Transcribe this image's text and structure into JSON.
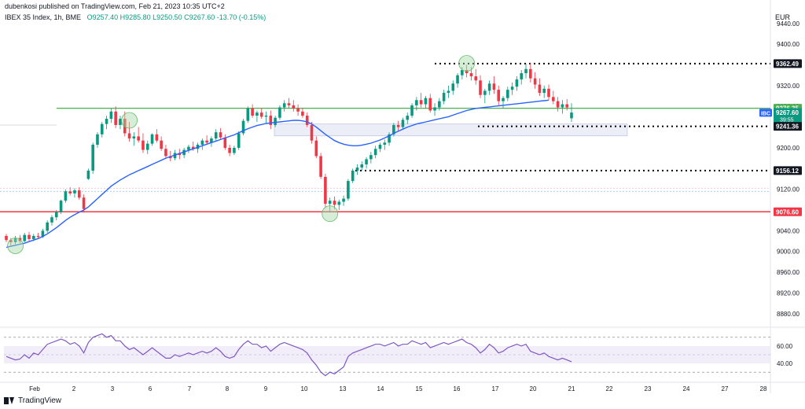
{
  "header": {
    "published_text": "dubenkosi published on TradingView.com, Feb 21, 2023 10:35 UTC+2"
  },
  "legend": {
    "symbol": "IBEX 35 Index, 1h, BME",
    "ohlc": "O9257.40  H9285.80  L9250.50  C9267.60  -13.70 (-0.15%)"
  },
  "currency": "EUR",
  "footer": {
    "brand": "TradingView"
  },
  "colors": {
    "up": "#089981",
    "down": "#f23645",
    "ma": "#2962ff",
    "rsi": "#7e57c2",
    "green_line": "#4caf50",
    "red_line": "#f23645",
    "zone_fill": "#e8eaf6",
    "circle": "#a5d6a7"
  },
  "chart_data": {
    "type": "candlestick",
    "y_axis": {
      "ticks": [
        8880,
        8920,
        8960,
        9000,
        9040,
        9080,
        9120,
        9160,
        9200,
        9240,
        9280,
        9320,
        9360,
        9400,
        9440
      ],
      "ylim": [
        8860,
        9470
      ]
    },
    "x_axis": {
      "labels": [
        "Feb",
        "2",
        "3",
        "6",
        "7",
        "8",
        "9",
        "10",
        "13",
        "14",
        "15",
        "16",
        "17",
        "20",
        "21",
        "22",
        "23",
        "24",
        "27",
        "28"
      ],
      "total_bars": 200
    },
    "price_tags": [
      {
        "value": "9362.49",
        "style": "black",
        "level": 9362.49
      },
      {
        "value": "9276.35",
        "style": "green",
        "level": 9276.35
      },
      {
        "value": "9267.60",
        "style": "teal",
        "level": 9267.6,
        "extra": "39:55",
        "symbol": "IBC"
      },
      {
        "value": "9241.36",
        "style": "black",
        "level": 9241.36
      },
      {
        "value": "9156.12",
        "style": "black",
        "level": 9156.12
      },
      {
        "value": "9076.60",
        "style": "red",
        "level": 9076.6
      }
    ],
    "levels": {
      "green_horizontal": 9276.35,
      "red_horizontal": 9076.6,
      "dotted_resistance": 9362.49,
      "dotted_support_1": 9241.36,
      "dotted_support_2": 9156.12,
      "zone_top": 9246,
      "zone_bottom": 9223,
      "faint_upper": 9122,
      "faint_lower": 9116
    },
    "candles": [
      [
        9030,
        9034,
        9018,
        9022
      ],
      [
        9022,
        9026,
        9012,
        9018
      ],
      [
        9018,
        9030,
        9014,
        9026
      ],
      [
        9026,
        9032,
        9016,
        9020
      ],
      [
        9020,
        9036,
        9018,
        9032
      ],
      [
        9032,
        9038,
        9020,
        9024
      ],
      [
        9024,
        9034,
        9020,
        9030
      ],
      [
        9030,
        9036,
        9024,
        9028
      ],
      [
        9028,
        9044,
        9026,
        9040
      ],
      [
        9040,
        9060,
        9036,
        9056
      ],
      [
        9056,
        9070,
        9050,
        9066
      ],
      [
        9066,
        9080,
        9060,
        9076
      ],
      [
        9076,
        9100,
        9072,
        9098
      ],
      [
        9098,
        9120,
        9094,
        9116
      ],
      [
        9116,
        9124,
        9108,
        9112
      ],
      [
        9112,
        9122,
        9104,
        9118
      ],
      [
        9118,
        9124,
        9100,
        9104
      ],
      [
        9104,
        9110,
        9078,
        9082
      ],
      [
        9140,
        9160,
        9138,
        9156
      ],
      [
        9156,
        9210,
        9150,
        9206
      ],
      [
        9206,
        9230,
        9200,
        9226
      ],
      [
        9226,
        9250,
        9220,
        9246
      ],
      [
        9246,
        9262,
        9236,
        9256
      ],
      [
        9256,
        9276,
        9248,
        9270
      ],
      [
        9270,
        9280,
        9238,
        9244
      ],
      [
        9244,
        9262,
        9236,
        9256
      ],
      [
        9256,
        9270,
        9222,
        9228
      ],
      [
        9228,
        9250,
        9212,
        9218
      ],
      [
        9218,
        9230,
        9204,
        9222
      ],
      [
        9222,
        9240,
        9210,
        9214
      ],
      [
        9214,
        9228,
        9190,
        9196
      ],
      [
        9196,
        9214,
        9188,
        9208
      ],
      [
        9208,
        9228,
        9204,
        9226
      ],
      [
        9226,
        9236,
        9210,
        9214
      ],
      [
        9214,
        9222,
        9194,
        9198
      ],
      [
        9198,
        9206,
        9180,
        9184
      ],
      [
        9184,
        9194,
        9174,
        9180
      ],
      [
        9180,
        9196,
        9176,
        9190
      ],
      [
        9190,
        9198,
        9178,
        9186
      ],
      [
        9186,
        9200,
        9180,
        9196
      ],
      [
        9196,
        9206,
        9190,
        9202
      ],
      [
        9202,
        9212,
        9194,
        9198
      ],
      [
        9198,
        9210,
        9190,
        9206
      ],
      [
        9206,
        9218,
        9196,
        9214
      ],
      [
        9214,
        9224,
        9206,
        9210
      ],
      [
        9210,
        9222,
        9202,
        9218
      ],
      [
        9218,
        9236,
        9212,
        9230
      ],
      [
        9230,
        9238,
        9216,
        9220
      ],
      [
        9220,
        9226,
        9196,
        9200
      ],
      [
        9200,
        9206,
        9184,
        9190
      ],
      [
        9190,
        9204,
        9186,
        9200
      ],
      [
        9200,
        9232,
        9196,
        9228
      ],
      [
        9228,
        9256,
        9224,
        9252
      ],
      [
        9252,
        9280,
        9248,
        9276
      ],
      [
        9276,
        9284,
        9258,
        9262
      ],
      [
        9262,
        9272,
        9250,
        9268
      ],
      [
        9268,
        9276,
        9256,
        9260
      ],
      [
        9260,
        9270,
        9248,
        9262
      ],
      [
        9262,
        9272,
        9236,
        9244
      ],
      [
        9244,
        9262,
        9240,
        9258
      ],
      [
        9258,
        9282,
        9254,
        9278
      ],
      [
        9278,
        9292,
        9270,
        9286
      ],
      [
        9286,
        9296,
        9276,
        9282
      ],
      [
        9282,
        9292,
        9270,
        9276
      ],
      [
        9276,
        9284,
        9262,
        9270
      ],
      [
        9270,
        9276,
        9258,
        9262
      ],
      [
        9262,
        9268,
        9240,
        9244
      ],
      [
        9244,
        9250,
        9208,
        9214
      ],
      [
        9214,
        9222,
        9180,
        9184
      ],
      [
        9184,
        9190,
        9140,
        9144
      ],
      [
        9144,
        9150,
        9084,
        9092
      ],
      [
        9092,
        9104,
        9076,
        9098
      ],
      [
        9098,
        9106,
        9082,
        9090
      ],
      [
        9090,
        9100,
        9080,
        9096
      ],
      [
        9096,
        9108,
        9088,
        9102
      ],
      [
        9102,
        9140,
        9098,
        9136
      ],
      [
        9136,
        9160,
        9132,
        9156
      ],
      [
        9156,
        9168,
        9148,
        9162
      ],
      [
        9162,
        9174,
        9156,
        9168
      ],
      [
        9168,
        9182,
        9160,
        9178
      ],
      [
        9178,
        9192,
        9170,
        9186
      ],
      [
        9186,
        9204,
        9180,
        9198
      ],
      [
        9198,
        9210,
        9192,
        9206
      ],
      [
        9206,
        9216,
        9196,
        9210
      ],
      [
        9210,
        9230,
        9204,
        9226
      ],
      [
        9226,
        9248,
        9222,
        9244
      ],
      [
        9244,
        9252,
        9232,
        9240
      ],
      [
        9240,
        9258,
        9236,
        9254
      ],
      [
        9254,
        9268,
        9246,
        9262
      ],
      [
        9262,
        9286,
        9258,
        9282
      ],
      [
        9282,
        9298,
        9272,
        9292
      ],
      [
        9292,
        9306,
        9278,
        9284
      ],
      [
        9284,
        9300,
        9276,
        9296
      ],
      [
        9296,
        9304,
        9268,
        9272
      ],
      [
        9272,
        9286,
        9262,
        9278
      ],
      [
        9278,
        9296,
        9272,
        9290
      ],
      [
        9290,
        9312,
        9284,
        9306
      ],
      [
        9306,
        9320,
        9296,
        9310
      ],
      [
        9310,
        9330,
        9302,
        9324
      ],
      [
        9324,
        9344,
        9316,
        9340
      ],
      [
        9340,
        9356,
        9332,
        9350
      ],
      [
        9350,
        9360,
        9336,
        9344
      ],
      [
        9344,
        9356,
        9330,
        9338
      ],
      [
        9338,
        9352,
        9322,
        9330
      ],
      [
        9330,
        9340,
        9296,
        9302
      ],
      [
        9302,
        9314,
        9286,
        9310
      ],
      [
        9310,
        9330,
        9302,
        9324
      ],
      [
        9324,
        9338,
        9304,
        9312
      ],
      [
        9312,
        9320,
        9282,
        9290
      ],
      [
        9290,
        9300,
        9276,
        9296
      ],
      [
        9296,
        9318,
        9290,
        9312
      ],
      [
        9312,
        9326,
        9302,
        9318
      ],
      [
        9318,
        9338,
        9310,
        9332
      ],
      [
        9332,
        9350,
        9322,
        9344
      ],
      [
        9344,
        9362,
        9334,
        9352
      ],
      [
        9352,
        9364,
        9326,
        9334
      ],
      [
        9334,
        9346,
        9314,
        9322
      ],
      [
        9322,
        9334,
        9300,
        9306
      ],
      [
        9306,
        9320,
        9296,
        9314
      ],
      [
        9314,
        9322,
        9292,
        9298
      ],
      [
        9298,
        9310,
        9284,
        9290
      ],
      [
        9290,
        9298,
        9270,
        9278
      ],
      [
        9278,
        9292,
        9266,
        9284
      ],
      [
        9284,
        9294,
        9272,
        9278
      ],
      [
        9257,
        9286,
        9250,
        9268
      ]
    ],
    "ma_values": [
      9008,
      9010,
      9012,
      9014,
      9016,
      9019,
      9022,
      9025,
      9029,
      9034,
      9040,
      9046,
      9053,
      9060,
      9066,
      9071,
      9076,
      9080,
      9086,
      9094,
      9102,
      9110,
      9118,
      9126,
      9132,
      9138,
      9143,
      9148,
      9152,
      9156,
      9160,
      9164,
      9168,
      9172,
      9176,
      9180,
      9183,
      9186,
      9189,
      9192,
      9195,
      9198,
      9201,
      9204,
      9207,
      9210,
      9213,
      9216,
      9219,
      9222,
      9225,
      9229,
      9233,
      9237,
      9240,
      9243,
      9245,
      9247,
      9248,
      9249,
      9250,
      9251,
      9252,
      9253,
      9253,
      9252,
      9250,
      9246,
      9240,
      9233,
      9226,
      9220,
      9214,
      9210,
      9207,
      9205,
      9204,
      9204,
      9205,
      9207,
      9209,
      9212,
      9215,
      9219,
      9223,
      9228,
      9232,
      9236,
      9240,
      9243,
      9246,
      9248,
      9250,
      9252,
      9254,
      9256,
      9258,
      9260,
      9263,
      9266,
      9269,
      9272,
      9274,
      9276,
      9277,
      9278,
      9279,
      9280,
      9281,
      9282,
      9283,
      9284,
      9285,
      9286,
      9287,
      9288,
      9289,
      9290,
      9291,
      9292
    ],
    "rsi": {
      "levels": [
        40,
        60
      ],
      "ticks": [
        "60.00",
        "40.00"
      ],
      "ylim": [
        22,
        78
      ],
      "values": [
        48,
        46,
        44,
        45,
        50,
        46,
        52,
        50,
        56,
        62,
        64,
        66,
        68,
        66,
        62,
        64,
        60,
        52,
        64,
        70,
        72,
        74,
        70,
        72,
        66,
        66,
        60,
        56,
        58,
        54,
        50,
        54,
        58,
        54,
        50,
        46,
        46,
        50,
        48,
        50,
        52,
        50,
        52,
        54,
        52,
        54,
        58,
        54,
        48,
        46,
        48,
        56,
        62,
        66,
        62,
        62,
        58,
        60,
        54,
        58,
        62,
        64,
        62,
        60,
        58,
        56,
        52,
        44,
        38,
        30,
        26,
        30,
        28,
        32,
        36,
        48,
        52,
        54,
        56,
        58,
        60,
        62,
        62,
        60,
        62,
        64,
        60,
        62,
        62,
        66,
        64,
        62,
        64,
        58,
        60,
        62,
        64,
        62,
        64,
        66,
        68,
        64,
        62,
        58,
        52,
        56,
        62,
        58,
        52,
        54,
        58,
        60,
        62,
        60,
        62,
        54,
        52,
        50,
        52,
        48,
        46,
        44,
        46,
        44,
        42
      ]
    },
    "markers": {
      "circle_candles": [
        2,
        27,
        71,
        101
      ]
    }
  }
}
